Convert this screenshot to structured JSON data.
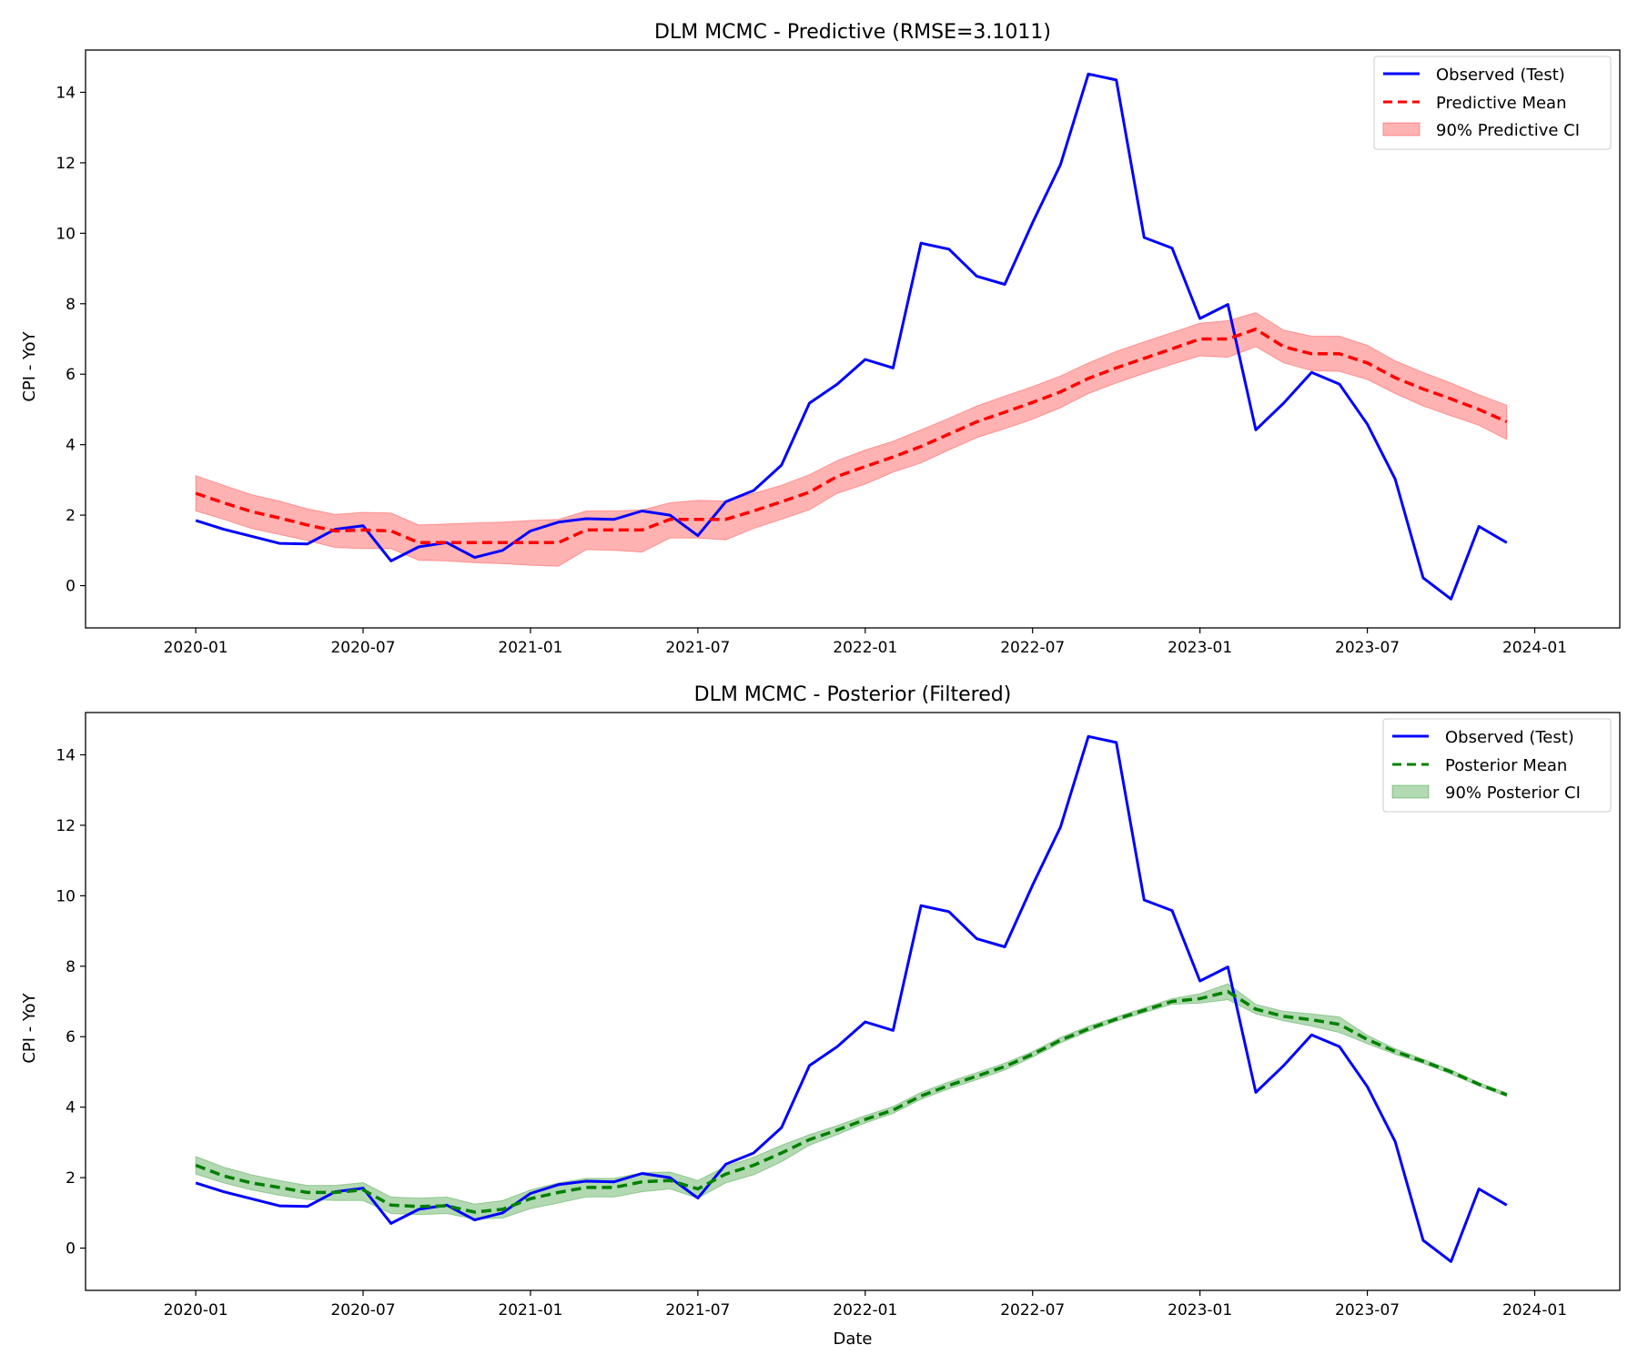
{
  "chart_data": [
    {
      "type": "line",
      "title": "DLM MCMC - Predictive (RMSE=3.1011)",
      "xlabel": "",
      "ylabel": "CPI - YoY",
      "ylim": [
        -1.2,
        15.2
      ],
      "x_ticks": [
        "2020-01",
        "2020-07",
        "2021-01",
        "2021-07",
        "2022-01",
        "2022-07",
        "2023-01",
        "2023-07",
        "2024-01"
      ],
      "y_ticks": [
        0,
        2,
        4,
        6,
        8,
        10,
        12,
        14
      ],
      "grid": false,
      "legend": "top-right",
      "band_color": "#ff0000",
      "mean_color": "#ff0000",
      "observed_color": "#0000ff",
      "observed": {
        "name": "Observed (Test)",
        "values": [
          1.85,
          1.6,
          1.4,
          1.2,
          1.18,
          1.6,
          1.7,
          0.7,
          1.1,
          1.22,
          0.8,
          1.0,
          1.55,
          1.8,
          1.9,
          1.88,
          2.12,
          2.0,
          1.42,
          2.38,
          2.7,
          3.42,
          5.18,
          5.72,
          6.42,
          6.18,
          9.72,
          9.55,
          8.78,
          8.55,
          10.3,
          11.95,
          14.52,
          14.35,
          9.88,
          9.58,
          7.58,
          7.98,
          4.42,
          5.18,
          6.05,
          5.72,
          4.58,
          3.02,
          0.22,
          -0.38,
          1.68,
          1.22
        ]
      },
      "mean": {
        "name": "Predictive Mean",
        "values": [
          2.62,
          2.35,
          2.1,
          1.92,
          1.72,
          1.55,
          1.58,
          1.55,
          1.22,
          1.22,
          1.22,
          1.22,
          1.22,
          1.22,
          1.58,
          1.58,
          1.58,
          1.88,
          1.88,
          1.88,
          2.12,
          2.38,
          2.65,
          3.1,
          3.38,
          3.65,
          3.95,
          4.3,
          4.65,
          4.92,
          5.2,
          5.5,
          5.88,
          6.18,
          6.45,
          6.72,
          7.0,
          7.0,
          7.28,
          6.78,
          6.58,
          6.58,
          6.32,
          5.9,
          5.58,
          5.3,
          5.0,
          4.65
        ]
      },
      "band": {
        "name": "90% Predictive CI",
        "level": "90%",
        "lower": [
          2.12,
          1.88,
          1.62,
          1.45,
          1.28,
          1.08,
          1.05,
          1.05,
          0.72,
          0.7,
          0.65,
          0.62,
          0.58,
          0.55,
          1.02,
          1.0,
          0.95,
          1.35,
          1.35,
          1.3,
          1.62,
          1.88,
          2.15,
          2.62,
          2.88,
          3.22,
          3.48,
          3.85,
          4.2,
          4.45,
          4.72,
          5.05,
          5.45,
          5.75,
          6.02,
          6.28,
          6.52,
          6.48,
          6.78,
          6.32,
          6.1,
          6.08,
          5.85,
          5.45,
          5.1,
          4.82,
          4.55,
          4.15
        ],
        "upper": [
          3.12,
          2.85,
          2.58,
          2.4,
          2.18,
          2.02,
          2.08,
          2.06,
          1.72,
          1.75,
          1.78,
          1.8,
          1.85,
          1.88,
          2.12,
          2.12,
          2.15,
          2.35,
          2.42,
          2.4,
          2.62,
          2.85,
          3.15,
          3.55,
          3.85,
          4.1,
          4.42,
          4.75,
          5.1,
          5.38,
          5.65,
          5.95,
          6.32,
          6.65,
          6.92,
          7.18,
          7.45,
          7.52,
          7.75,
          7.25,
          7.08,
          7.08,
          6.82,
          6.38,
          6.05,
          5.75,
          5.42,
          5.12
        ]
      }
    },
    {
      "type": "line",
      "title": "DLM MCMC - Posterior (Filtered)",
      "xlabel": "Date",
      "ylabel": "CPI - YoY",
      "ylim": [
        -1.2,
        15.2
      ],
      "x_ticks": [
        "2020-01",
        "2020-07",
        "2021-01",
        "2021-07",
        "2022-01",
        "2022-07",
        "2023-01",
        "2023-07",
        "2024-01"
      ],
      "y_ticks": [
        0,
        2,
        4,
        6,
        8,
        10,
        12,
        14
      ],
      "grid": false,
      "legend": "top-right",
      "band_color": "#008000",
      "mean_color": "#008000",
      "observed_color": "#0000ff",
      "observed": {
        "name": "Observed (Test)",
        "values": [
          1.85,
          1.6,
          1.4,
          1.2,
          1.18,
          1.6,
          1.7,
          0.7,
          1.1,
          1.22,
          0.8,
          1.0,
          1.55,
          1.8,
          1.9,
          1.88,
          2.12,
          2.0,
          1.42,
          2.38,
          2.7,
          3.42,
          5.18,
          5.72,
          6.42,
          6.18,
          9.72,
          9.55,
          8.78,
          8.55,
          10.3,
          11.95,
          14.52,
          14.35,
          9.88,
          9.58,
          7.58,
          7.98,
          4.42,
          5.18,
          6.05,
          5.72,
          4.58,
          3.02,
          0.22,
          -0.38,
          1.68,
          1.22
        ]
      },
      "mean": {
        "name": "Posterior Mean",
        "values": [
          2.35,
          2.05,
          1.85,
          1.72,
          1.58,
          1.58,
          1.65,
          1.22,
          1.18,
          1.2,
          1.02,
          1.1,
          1.4,
          1.58,
          1.72,
          1.72,
          1.88,
          1.92,
          1.68,
          2.1,
          2.35,
          2.7,
          3.08,
          3.35,
          3.65,
          3.92,
          4.32,
          4.62,
          4.88,
          5.15,
          5.5,
          5.9,
          6.22,
          6.5,
          6.75,
          7.0,
          7.08,
          7.28,
          6.78,
          6.58,
          6.48,
          6.35,
          5.92,
          5.58,
          5.3,
          5.0,
          4.65,
          4.35
        ]
      },
      "band": {
        "name": "90% Posterior CI",
        "level": "90%",
        "lower": [
          2.1,
          1.85,
          1.65,
          1.5,
          1.38,
          1.35,
          1.35,
          0.98,
          0.95,
          0.98,
          0.82,
          0.85,
          1.12,
          1.28,
          1.45,
          1.45,
          1.6,
          1.68,
          1.42,
          1.85,
          2.08,
          2.45,
          2.92,
          3.22,
          3.55,
          3.82,
          4.22,
          4.52,
          4.78,
          5.05,
          5.42,
          5.82,
          6.15,
          6.44,
          6.68,
          6.92,
          6.95,
          7.05,
          6.65,
          6.45,
          6.3,
          6.12,
          5.8,
          5.5,
          5.24,
          4.94,
          4.6,
          4.3
        ],
        "upper": [
          2.6,
          2.3,
          2.08,
          1.92,
          1.78,
          1.78,
          1.86,
          1.45,
          1.42,
          1.45,
          1.25,
          1.35,
          1.65,
          1.85,
          1.98,
          1.98,
          2.14,
          2.16,
          1.92,
          2.32,
          2.58,
          2.92,
          3.22,
          3.48,
          3.76,
          4.02,
          4.42,
          4.72,
          4.98,
          5.25,
          5.58,
          5.98,
          6.3,
          6.56,
          6.82,
          7.08,
          7.22,
          7.5,
          6.92,
          6.72,
          6.65,
          6.56,
          6.04,
          5.66,
          5.36,
          5.06,
          4.7,
          4.4
        ]
      }
    }
  ]
}
